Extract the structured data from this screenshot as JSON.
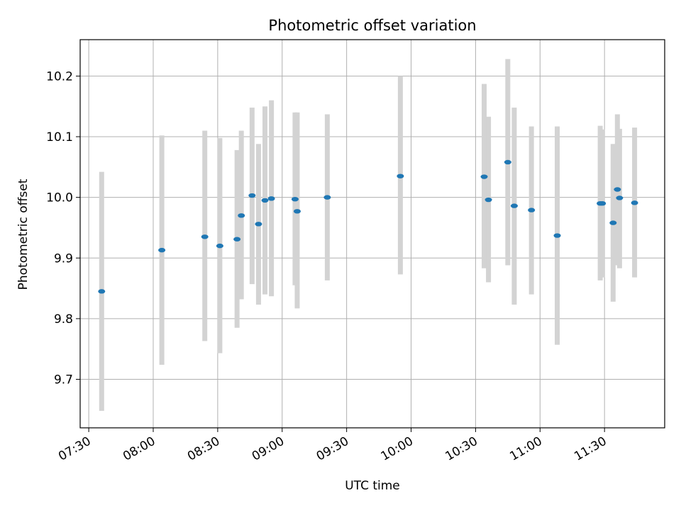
{
  "chart_data": {
    "type": "scatter",
    "title": "Photometric offset variation",
    "xlabel": "UTC time",
    "ylabel": "Photometric offset",
    "x_ticks": [
      "07:30",
      "08:00",
      "08:30",
      "09:00",
      "09:30",
      "10:00",
      "10:30",
      "11:00",
      "11:30"
    ],
    "y_ticks": [
      "9.7",
      "9.8",
      "9.9",
      "10.0",
      "10.1",
      "10.2"
    ],
    "xlim": [
      "07:26",
      "11:58"
    ],
    "ylim": [
      9.62,
      10.26
    ],
    "grid": true,
    "errorbar_color": "#d3d3d3",
    "marker_color": "#1f77b4",
    "series": [
      {
        "points": [
          {
            "x": "07:36",
            "y": 9.845,
            "ylow": 9.648,
            "yhigh": 10.042
          },
          {
            "x": "08:04",
            "y": 9.913,
            "ylow": 9.724,
            "yhigh": 10.102
          },
          {
            "x": "08:24",
            "y": 9.935,
            "ylow": 9.763,
            "yhigh": 10.11
          },
          {
            "x": "08:31",
            "y": 9.92,
            "ylow": 9.743,
            "yhigh": 10.098
          },
          {
            "x": "08:39",
            "y": 9.931,
            "ylow": 9.785,
            "yhigh": 10.078
          },
          {
            "x": "08:41",
            "y": 9.97,
            "ylow": 9.832,
            "yhigh": 10.11
          },
          {
            "x": "08:46",
            "y": 10.003,
            "ylow": 9.857,
            "yhigh": 10.148
          },
          {
            "x": "08:49",
            "y": 9.956,
            "ylow": 9.823,
            "yhigh": 10.088
          },
          {
            "x": "08:52",
            "y": 9.995,
            "ylow": 9.84,
            "yhigh": 10.15
          },
          {
            "x": "08:55",
            "y": 9.998,
            "ylow": 9.837,
            "yhigh": 10.16
          },
          {
            "x": "09:06",
            "y": 9.997,
            "ylow": 9.855,
            "yhigh": 10.14
          },
          {
            "x": "09:07",
            "y": 9.977,
            "ylow": 9.817,
            "yhigh": 10.14
          },
          {
            "x": "09:21",
            "y": 10.0,
            "ylow": 9.863,
            "yhigh": 10.137
          },
          {
            "x": "09:55",
            "y": 10.035,
            "ylow": 9.873,
            "yhigh": 10.2
          },
          {
            "x": "10:34",
            "y": 10.034,
            "ylow": 9.883,
            "yhigh": 10.187
          },
          {
            "x": "10:36",
            "y": 9.996,
            "ylow": 9.86,
            "yhigh": 10.133
          },
          {
            "x": "10:45",
            "y": 10.058,
            "ylow": 9.888,
            "yhigh": 10.228
          },
          {
            "x": "10:48",
            "y": 9.986,
            "ylow": 9.823,
            "yhigh": 10.148
          },
          {
            "x": "10:56",
            "y": 9.979,
            "ylow": 9.84,
            "yhigh": 10.117
          },
          {
            "x": "11:08",
            "y": 9.937,
            "ylow": 9.757,
            "yhigh": 10.117
          },
          {
            "x": "11:28",
            "y": 9.99,
            "ylow": 9.863,
            "yhigh": 10.118
          },
          {
            "x": "11:29",
            "y": 9.99,
            "ylow": 9.868,
            "yhigh": 10.112
          },
          {
            "x": "11:34",
            "y": 9.958,
            "ylow": 9.828,
            "yhigh": 10.088
          },
          {
            "x": "11:36",
            "y": 10.013,
            "ylow": 9.888,
            "yhigh": 10.137
          },
          {
            "x": "11:37",
            "y": 9.999,
            "ylow": 9.883,
            "yhigh": 10.113
          },
          {
            "x": "11:44",
            "y": 9.991,
            "ylow": 9.868,
            "yhigh": 10.115
          }
        ]
      }
    ]
  }
}
